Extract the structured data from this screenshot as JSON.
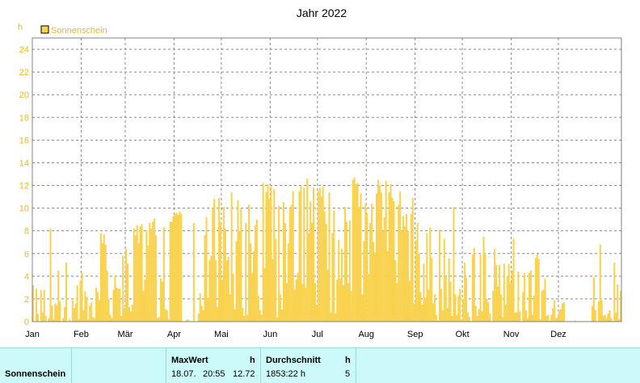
{
  "chart_data": {
    "type": "bar",
    "title": "Jahr 2022",
    "ylabel": "h",
    "ylim": [
      0,
      25
    ],
    "yticks": [
      0,
      2,
      4,
      6,
      8,
      10,
      12,
      14,
      16,
      18,
      20,
      22,
      24
    ],
    "months": [
      "Jan",
      "Feb",
      "Mär",
      "Apr",
      "Mai",
      "Jun",
      "Jul",
      "Aug",
      "Sep",
      "Okt",
      "Nov",
      "Dez"
    ],
    "grid": true,
    "legend_position": "top-left",
    "series": [
      {
        "name": "Sonnenschein",
        "color": "#f9d350",
        "values": [
          3.2,
          0.0,
          2.9,
          0.7,
          0.0,
          2.8,
          0.8,
          2.8,
          0.5,
          0.0,
          0.3,
          8.2,
          1.4,
          0.2,
          1.6,
          1.4,
          4.5,
          1.8,
          0.0,
          0.3,
          1.3,
          5.2,
          0.0,
          0.2,
          0.0,
          1.9,
          1.2,
          1.6,
          3.2,
          0.2,
          3.6,
          4.3,
          1.0,
          2.7,
          2.2,
          0.2,
          1.4,
          1.7,
          0.4,
          0.3,
          3.0,
          2.6,
          1.9,
          7.8,
          6.9,
          7.7,
          6.8,
          4.5,
          2.0,
          0.6,
          0.3,
          2.8,
          4.1,
          3.0,
          2.9,
          2.9,
          0.5,
          5.8,
          1.2,
          6.4,
          5.1,
          1.3,
          0.9,
          1.5,
          8.2,
          7.6,
          8.5,
          6.9,
          8.4,
          8.6,
          2.7,
          3.7,
          8.0,
          6.7,
          8.7,
          8.2,
          8.8,
          9.1,
          7.6,
          0.3,
          0.4,
          3.8,
          3.5,
          8.3,
          1.1,
          1.0,
          0.2,
          8.8,
          8.8,
          9.3,
          9.5,
          9.6,
          9.4,
          9.7,
          9.5,
          0.0,
          0.0,
          0.1,
          0.2,
          0.1,
          0.0,
          0.0,
          8.7,
          0.0,
          0.0,
          0.7,
          2.5,
          1.4,
          1.0,
          7.6,
          9.2,
          2.1,
          5.4,
          5.8,
          10.0,
          10.8,
          5.4,
          1.3,
          10.9,
          8.8,
          3.7,
          10.1,
          8.2,
          5.4,
          5.7,
          2.4,
          11.4,
          4.2,
          1.1,
          7.1,
          10.7,
          8.0,
          10.0,
          1.2,
          0.5,
          8.7,
          0.6,
          10.3,
          6.9,
          4.3,
          6.2,
          8.5,
          9.0,
          2.3,
          1.0,
          0.6,
          12.2,
          4.7,
          11.4,
          12.1,
          10.8,
          12.0,
          5.5,
          11.7,
          7.3,
          0.4,
          10.2,
          2.4,
          1.1,
          10.5,
          8.7,
          3.4,
          6.9,
          9.9,
          10.3,
          11.5,
          2.8,
          3.7,
          4.3,
          11.5,
          12.0,
          3.3,
          11.8,
          3.0,
          12.6,
          7.8,
          10.6,
          8.7,
          11.8,
          3.4,
          1.5,
          11.5,
          11.8,
          11.0,
          11.9,
          9.7,
          8.6,
          4.6,
          11.4,
          0.8,
          7.8,
          9.8,
          0.7,
          3.7,
          7.2,
          3.8,
          6.4,
          3.2,
          10.1,
          8.8,
          3.4,
          8.9,
          2.7,
          12.5,
          12.7,
          12.1,
          12.2,
          10.1,
          11.3,
          2.4,
          7.1,
          10.4,
          9.6,
          4.2,
          8.7,
          10.4,
          7.0,
          6.1,
          11.3,
          12.5,
          12.0,
          11.4,
          8.0,
          9.2,
          12.4,
          6.2,
          11.4,
          12.1,
          10.9,
          10.6,
          5.4,
          3.4,
          10.3,
          11.5,
          8.0,
          9.3,
          8.4,
          9.5,
          8.0,
          3.6,
          9.5,
          10.9,
          1.6,
          7.2,
          8.7,
          6.0,
          2.6,
          1.5,
          5.1,
          2.1,
          7.8,
          2.8,
          8.3,
          5.6,
          1.6,
          2.4,
          0.6,
          0.1,
          8.1,
          2.9,
          1.0,
          7.3,
          4.0,
          1.2,
          5.6,
          3.5,
          0.5,
          10.1,
          2.4,
          0.6,
          2.3,
          2.9,
          0.2,
          2.0,
          5.2,
          3.9,
          0.8,
          0.4,
          0.0,
          5.9,
          6.5,
          1.4,
          0.5,
          1.1,
          5.9,
          0.9,
          7.5,
          6.0,
          2.0,
          1.7,
          0.7,
          0.0,
          2.7,
          6.4,
          5.0,
          3.1,
          5.0,
          2.4,
          0.4,
          5.1,
          1.5,
          4.0,
          5.1,
          3.4,
          4.5,
          7.3,
          0.8,
          0.8,
          4.4,
          0.9,
          0.0,
          2.6,
          4.3,
          1.0,
          0.3,
          4.3,
          4.5,
          0.6,
          2.3,
          5.6,
          6.0,
          5.5,
          0.2,
          2.7,
          2.8,
          3.8,
          0.5,
          0.6,
          0.1,
          0.6,
          1.2,
          1.9,
          0.3,
          0.4,
          1.0,
          1.1,
          1.6,
          1.7,
          0.0,
          0.0,
          0.0,
          0.0,
          0.0,
          0.0,
          0.1,
          0.0,
          0.0,
          0.0,
          0.0,
          0.0,
          0.0,
          0.0,
          0.0,
          0.0,
          0.0,
          1.4,
          3.9,
          1.0,
          0.0,
          1.8,
          6.8,
          1.9,
          0.5,
          0.6,
          0.3,
          0.7,
          1.0,
          0.3,
          0.0,
          5.2,
          0.8,
          3.3,
          0.2,
          2.7
        ]
      }
    ]
  },
  "stats": {
    "row_label": "Sonnenschein",
    "max_header": "MaxWert",
    "max_unit": "h",
    "max_date": "18.07.",
    "max_time": "20:55",
    "max_value": "12.72",
    "avg_header": "Durchschnitt",
    "avg_unit": "h",
    "total_value": "1853:22 h",
    "avg_value": "5"
  }
}
